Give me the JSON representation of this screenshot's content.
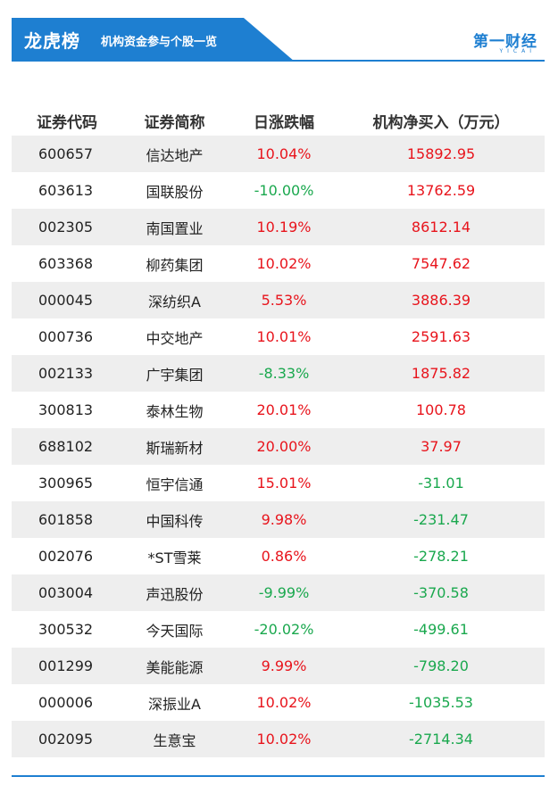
{
  "banner": {
    "title": "龙虎榜",
    "subtitle": "机构资金参与个股一览",
    "logo_text": "第一财经",
    "logo_sub": "YICAI"
  },
  "table": {
    "headers": [
      "证券代码",
      "证券简称",
      "日涨跌幅",
      "机构净买入（万元）"
    ],
    "rows": [
      {
        "code": "600657",
        "name": "信达地产",
        "change": "10.04%",
        "net": "15892.95"
      },
      {
        "code": "603613",
        "name": "国联股份",
        "change": "-10.00%",
        "net": "13762.59"
      },
      {
        "code": "002305",
        "name": "南国置业",
        "change": "10.19%",
        "net": "8612.14"
      },
      {
        "code": "603368",
        "name": "柳药集团",
        "change": "10.02%",
        "net": "7547.62"
      },
      {
        "code": "000045",
        "name": "深纺织A",
        "change": "5.53%",
        "net": "3886.39"
      },
      {
        "code": "000736",
        "name": "中交地产",
        "change": "10.01%",
        "net": "2591.63"
      },
      {
        "code": "002133",
        "name": "广宇集团",
        "change": "-8.33%",
        "net": "1875.82"
      },
      {
        "code": "300813",
        "name": "泰林生物",
        "change": "20.01%",
        "net": "100.78"
      },
      {
        "code": "688102",
        "name": "斯瑞新材",
        "change": "20.00%",
        "net": "37.97"
      },
      {
        "code": "300965",
        "name": "恒宇信通",
        "change": "15.01%",
        "net": "-31.01"
      },
      {
        "code": "601858",
        "name": "中国科传",
        "change": "9.98%",
        "net": "-231.47"
      },
      {
        "code": "002076",
        "name": "*ST雪莱",
        "change": "0.86%",
        "net": "-278.21"
      },
      {
        "code": "003004",
        "name": "声迅股份",
        "change": "-9.99%",
        "net": "-370.58"
      },
      {
        "code": "300532",
        "name": "今天国际",
        "change": "-20.02%",
        "net": "-499.61"
      },
      {
        "code": "001299",
        "name": "美能能源",
        "change": "9.99%",
        "net": "-798.20"
      },
      {
        "code": "000006",
        "name": "深振业A",
        "change": "10.02%",
        "net": "-1035.53"
      },
      {
        "code": "002095",
        "name": "生意宝",
        "change": "10.02%",
        "net": "-2714.34"
      }
    ]
  },
  "colors": {
    "accent": "#1e7fd1",
    "up": "#e8141c",
    "down": "#1aa84e"
  }
}
